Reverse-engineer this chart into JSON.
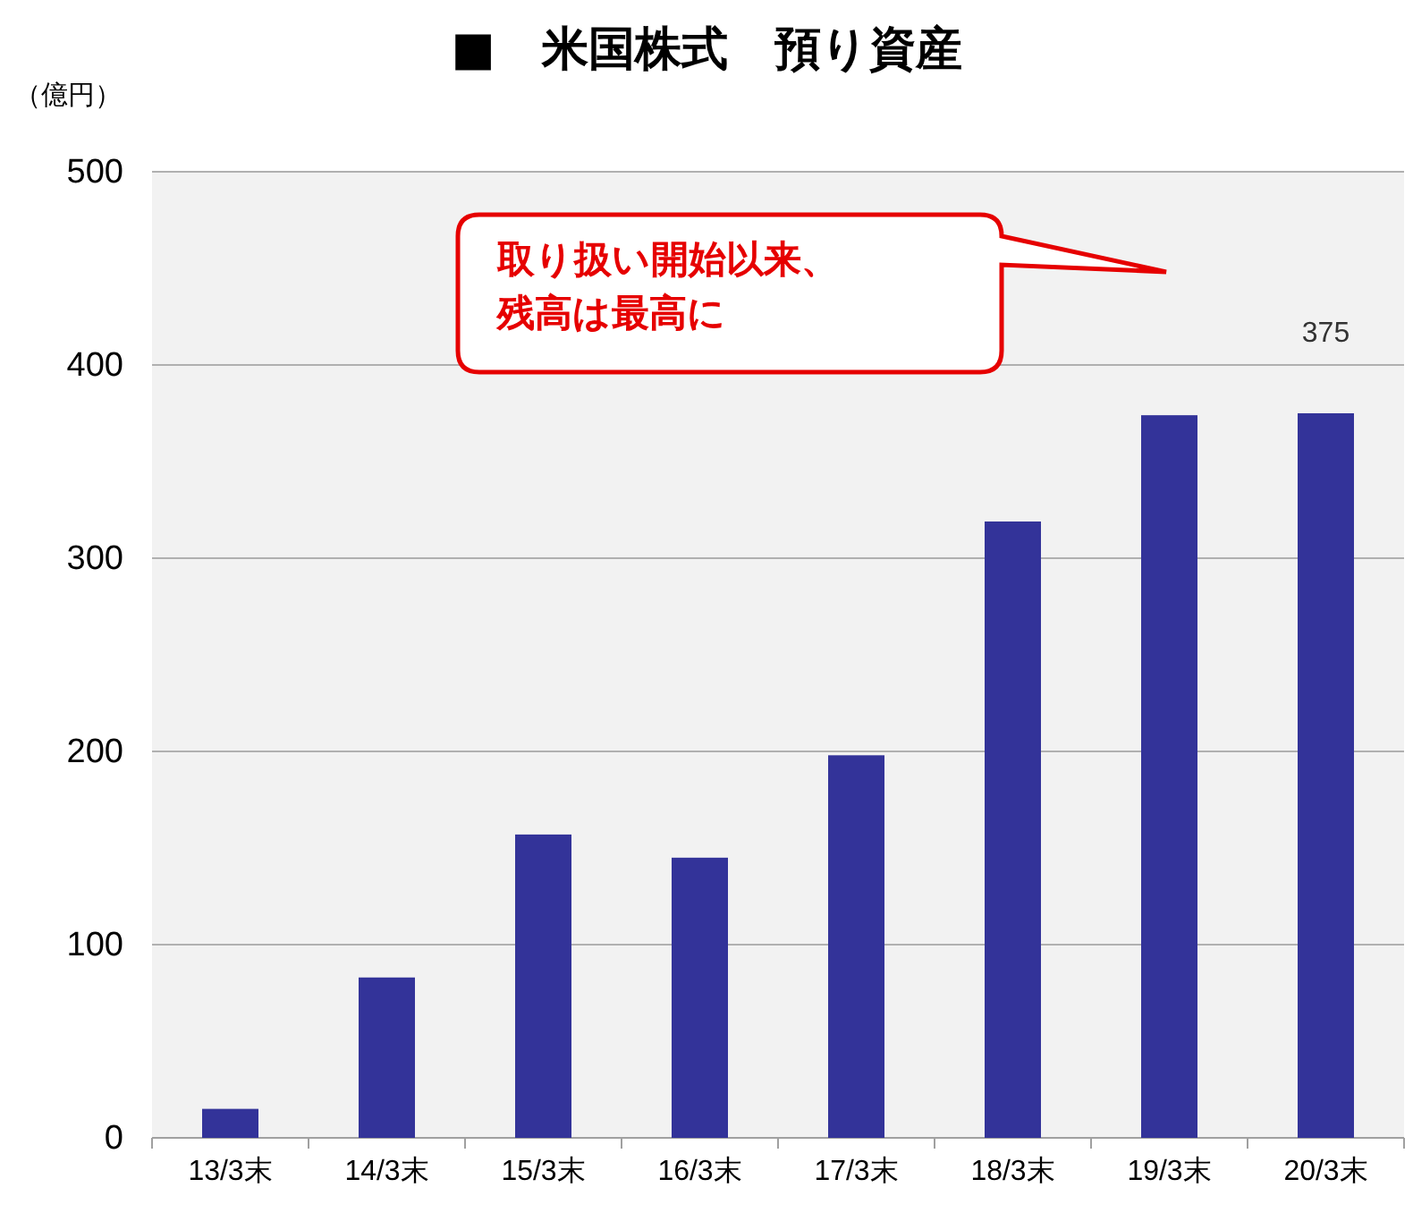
{
  "chart_data": {
    "type": "bar",
    "title": "■　米国株式　預り資産",
    "ylabel": "（億円）",
    "categories": [
      "13/3末",
      "14/3末",
      "15/3末",
      "16/3末",
      "17/3末",
      "18/3末",
      "19/3末",
      "20/3末"
    ],
    "values": [
      15,
      83,
      157,
      145,
      198,
      319,
      374,
      375
    ],
    "value_labels": [
      null,
      null,
      null,
      null,
      null,
      null,
      null,
      "375"
    ],
    "color": "#333399",
    "ylim": [
      0,
      500
    ],
    "yticks": [
      0,
      100,
      200,
      300,
      400,
      500
    ],
    "grid": "y",
    "annotations": [
      "取り扱い開始以来、",
      "残高は最高に"
    ]
  }
}
